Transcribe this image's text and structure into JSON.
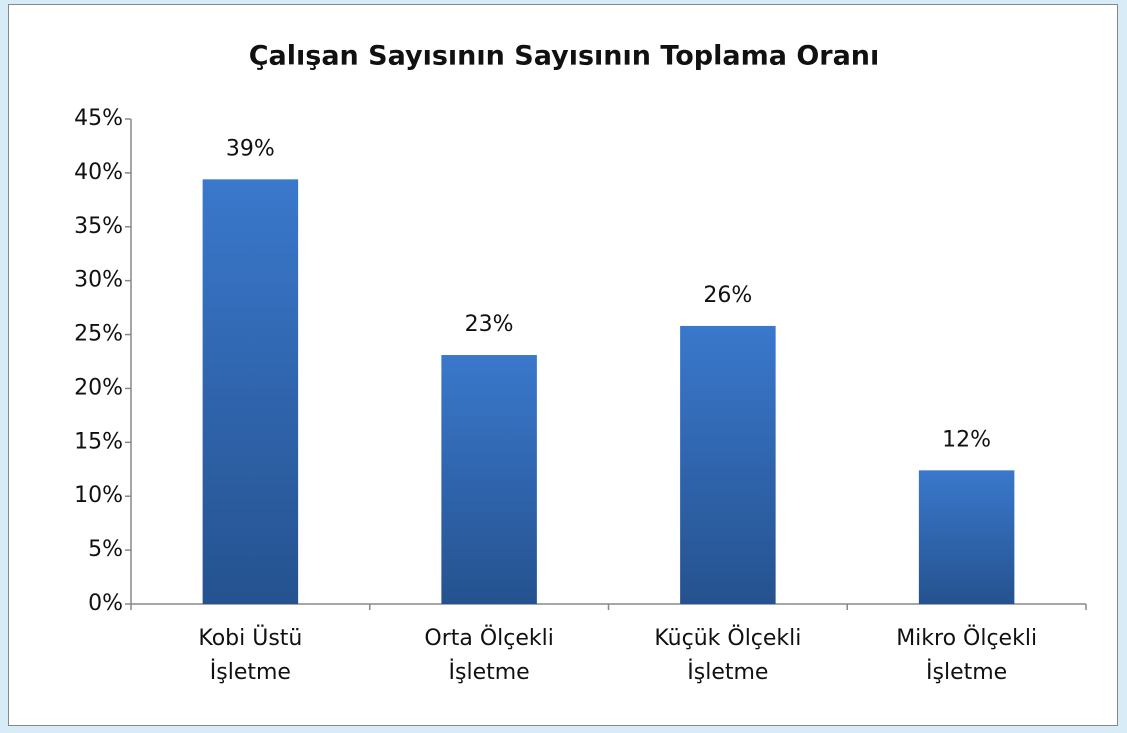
{
  "chart_data": {
    "type": "bar",
    "title": "Çalışan Sayısının Sayısının Toplama Oranı",
    "categories": [
      "Kobi Üstü İşletme",
      "Orta Ölçekli İşletme",
      "Küçük Ölçekli İşletme",
      "Mikro Ölçekli İşletme"
    ],
    "values": [
      39.4,
      23.1,
      25.8,
      12.4
    ],
    "value_labels": [
      "39%",
      "23%",
      "26%",
      "12%"
    ],
    "color": "#3a78cc",
    "ylim": [
      0,
      45
    ],
    "yticks": [
      {
        "value": 0,
        "label": "0%"
      },
      {
        "value": 5,
        "label": "5%"
      },
      {
        "value": 10,
        "label": "10%"
      },
      {
        "value": 15,
        "label": "15%"
      },
      {
        "value": 20,
        "label": "20%"
      },
      {
        "value": 25,
        "label": "25%"
      },
      {
        "value": 30,
        "label": "30%"
      },
      {
        "value": 35,
        "label": "35%"
      },
      {
        "value": 40,
        "label": "40%"
      },
      {
        "value": 45,
        "label": "45%"
      }
    ],
    "grid": false
  }
}
